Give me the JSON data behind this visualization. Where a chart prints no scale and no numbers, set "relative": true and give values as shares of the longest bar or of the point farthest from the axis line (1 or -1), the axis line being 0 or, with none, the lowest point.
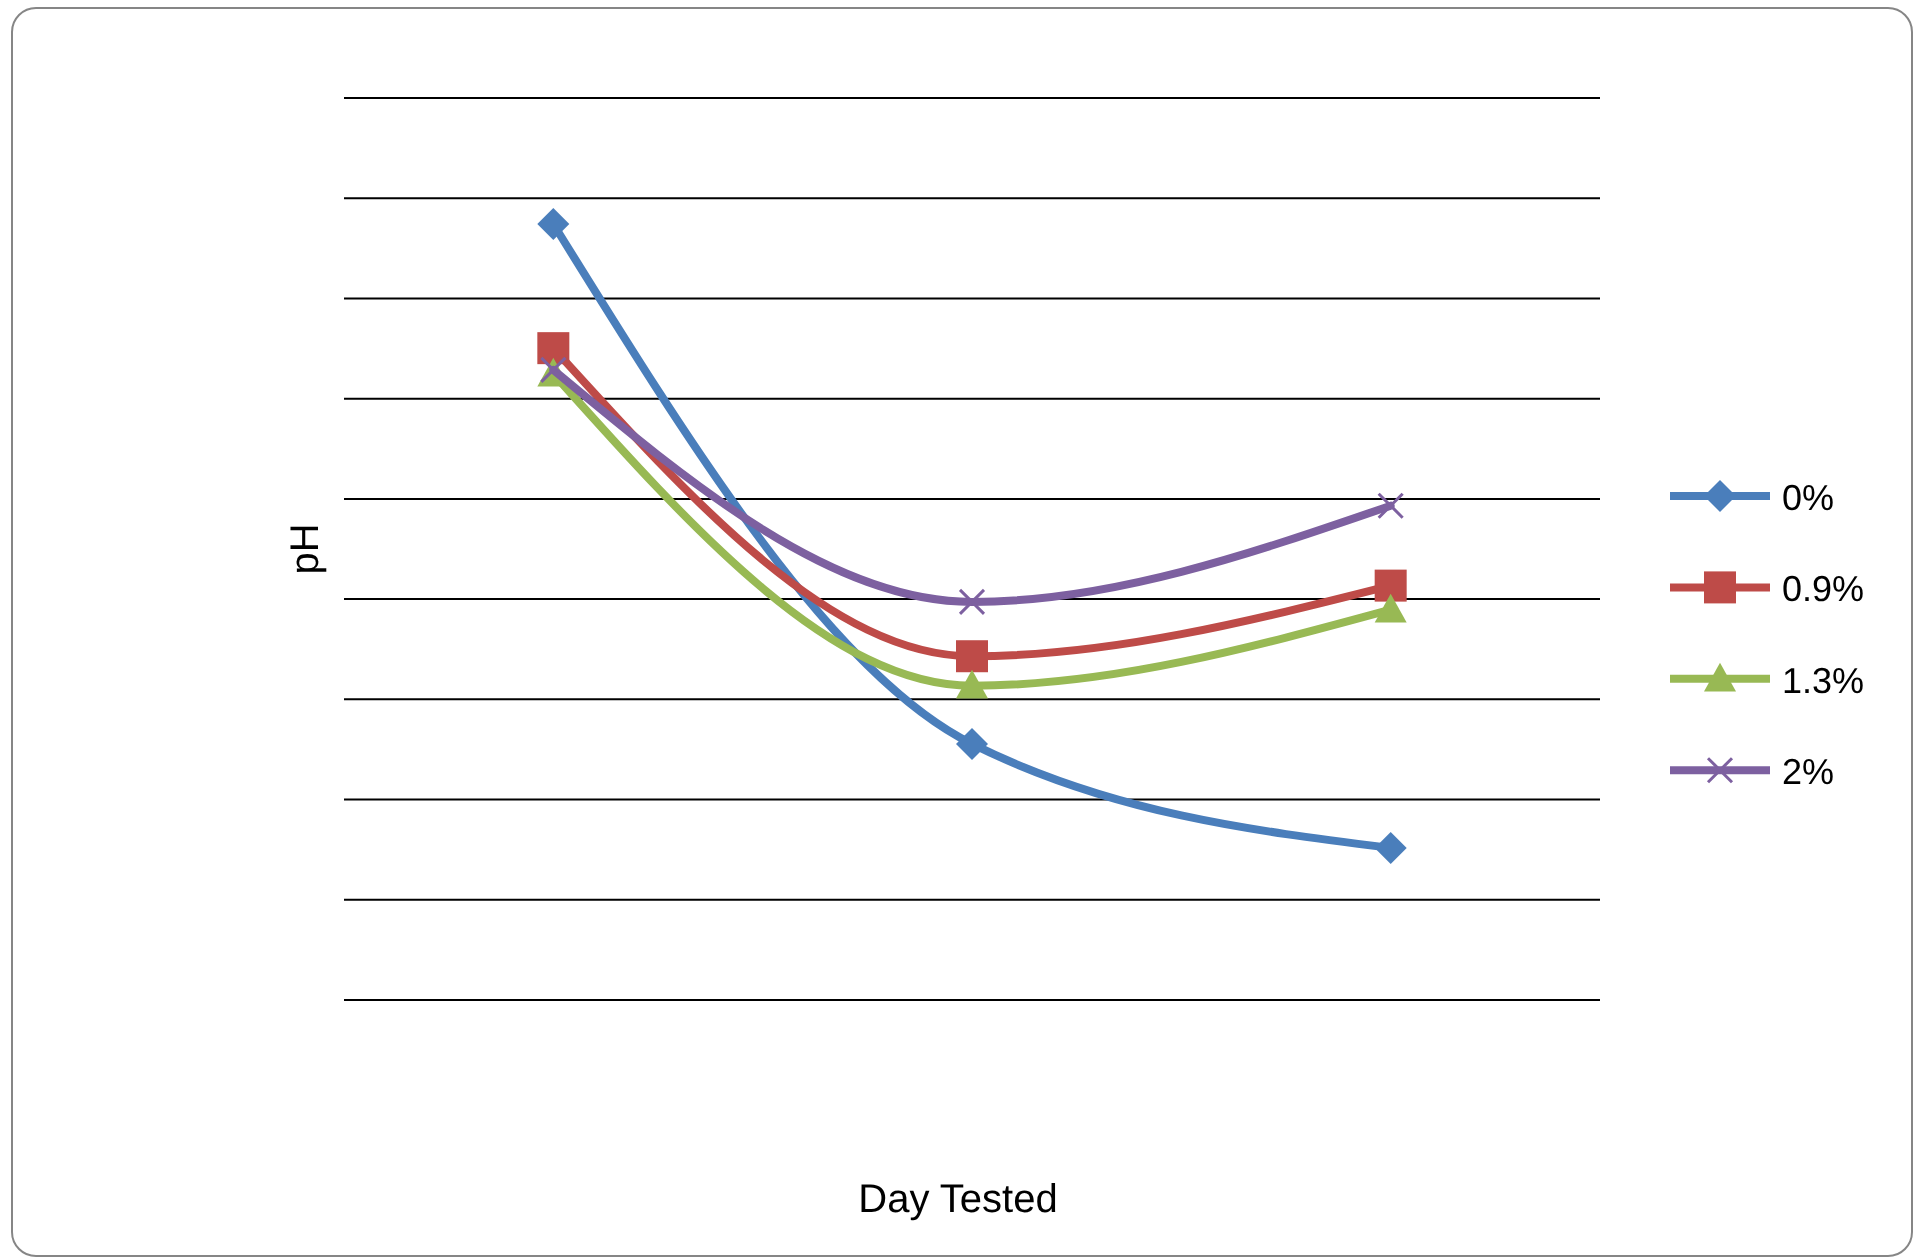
{
  "chart_data": {
    "type": "line",
    "relative": true,
    "xlabel": "Day Tested",
    "ylabel": "pH",
    "categories": [
      null,
      null,
      null
    ],
    "grid": "y",
    "legend": "right",
    "line_style": "solid",
    "series": [
      {
        "name": "0%",
        "color": "#4a7ebb",
        "marker": "diamond",
        "values": [
          1,
          0.33,
          0.196
        ]
      },
      {
        "name": "0.9%",
        "color": "#be4b48",
        "marker": "square",
        "values": [
          0.84,
          0.443,
          0.534
        ]
      },
      {
        "name": "1.3%",
        "color": "#98b954",
        "marker": "triangle",
        "values": [
          0.807,
          0.405,
          0.503
        ]
      },
      {
        "name": "2%",
        "color": "#7d60a0",
        "marker": "cross",
        "values": [
          0.812,
          0.513,
          0.637
        ]
      }
    ]
  }
}
